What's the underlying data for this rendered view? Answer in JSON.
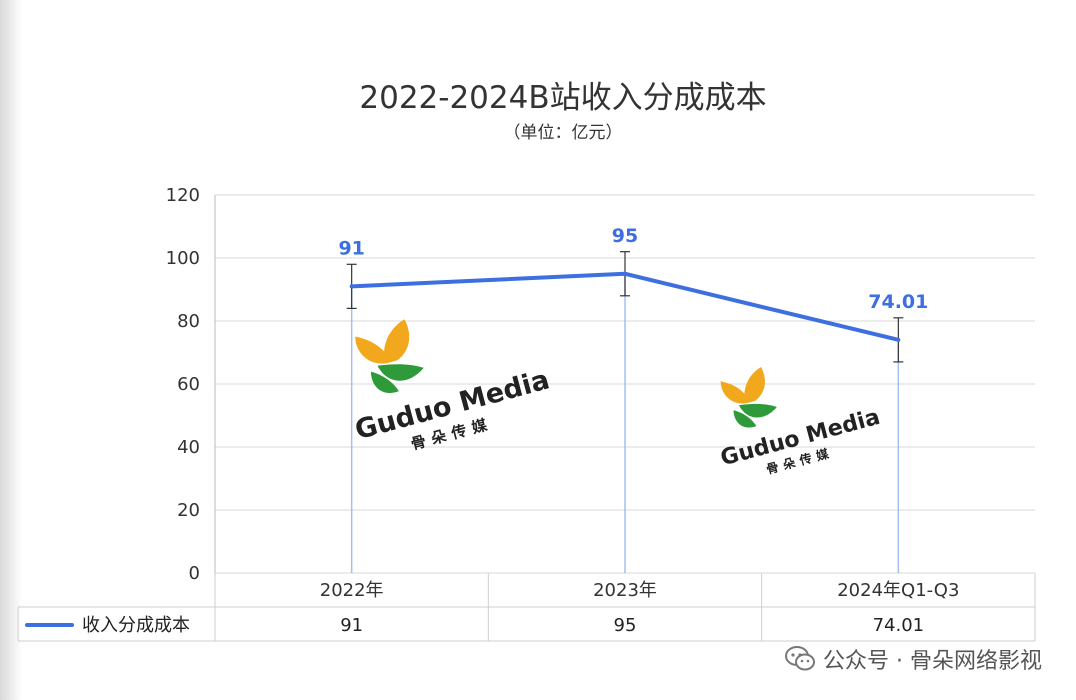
{
  "chart_data": {
    "type": "line",
    "title": "2022-2024B站收入分成成本",
    "subtitle": "（单位：亿元）",
    "categories": [
      "2022年",
      "2023年",
      "2024年Q1-Q3"
    ],
    "series": [
      {
        "name": "收入分成成本",
        "values": [
          91,
          95,
          74.01
        ],
        "labels": [
          "91",
          "95",
          "74.01"
        ],
        "color": "#3d6fe0"
      }
    ],
    "ylim": [
      0,
      120
    ],
    "yticks": [
      0,
      20,
      40,
      60,
      80,
      100,
      120
    ],
    "error_bar": 7,
    "grid": true,
    "legend": "data-table"
  },
  "watermark": {
    "brand": "Guduo Media",
    "brand_cn": "骨朵传媒",
    "colors": {
      "petal": "#f2a81d",
      "leaf": "#2f9a3a",
      "text": "#222222"
    }
  },
  "footer": {
    "label": "公众号 · 骨朵网络影视",
    "icon": "wechat-icon"
  },
  "colors": {
    "line": "#3d6fe0",
    "grid": "#d8d8d8",
    "axis": "#bbbbbb"
  }
}
